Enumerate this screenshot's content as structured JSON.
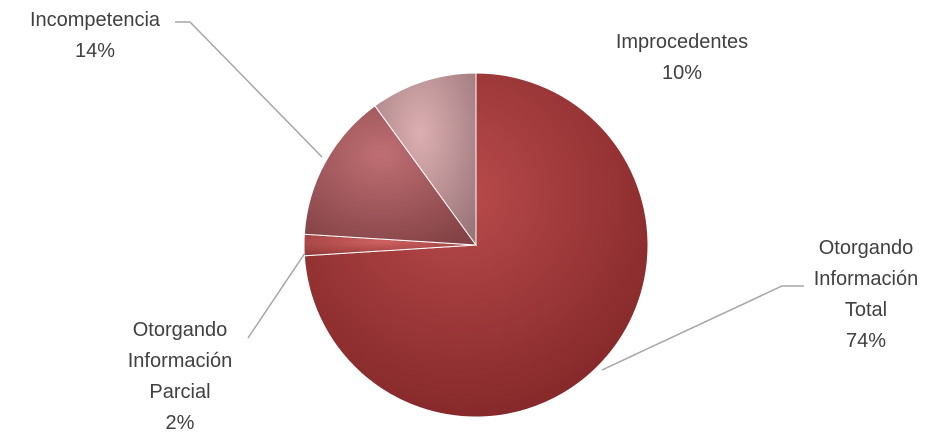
{
  "chart_data": {
    "type": "pie",
    "title": "",
    "slices": [
      {
        "label": [
          "Otorgando",
          "Información",
          "Total"
        ],
        "value": 74,
        "value_label": "74%",
        "color": "#b03234"
      },
      {
        "label": [
          "Otorgando",
          "Información",
          "Parcial"
        ],
        "value": 2,
        "value_label": "2%",
        "color": "#c94b4b"
      },
      {
        "label": [
          "Incompetencia"
        ],
        "value": 14,
        "value_label": "14%",
        "color": "#b65b60"
      },
      {
        "label": [
          "Improcedentes"
        ],
        "value": 10,
        "value_label": "10%",
        "color": "#d7a4a8"
      }
    ],
    "legend": "none",
    "data_labels": "outside with leader lines"
  }
}
